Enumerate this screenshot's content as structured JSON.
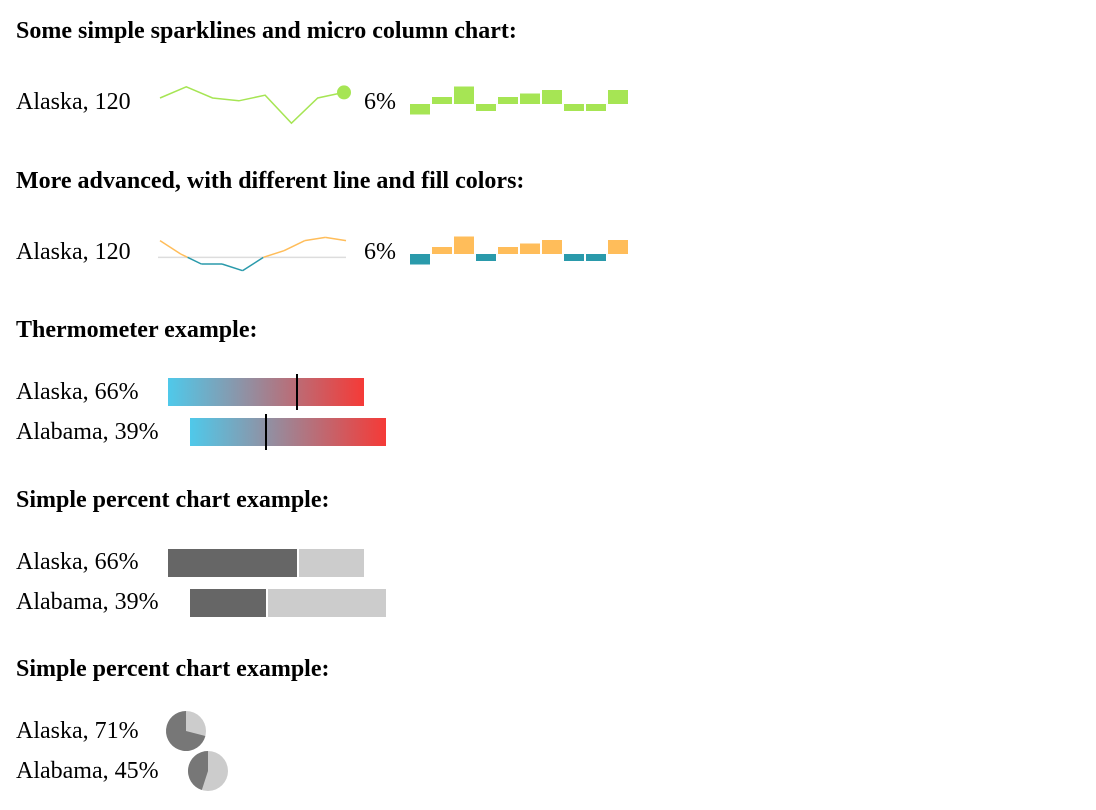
{
  "headings": {
    "h1": "Some simple sparklines and micro column chart:",
    "h2": "More advanced, with different line and fill colors:",
    "h3": "Thermometer example:",
    "h4": "Simple percent chart example:",
    "h5": "Simple percent chart example:"
  },
  "colors": {
    "green": "#a6e554",
    "orange": "#ffbd5a",
    "teal": "#2a9aab",
    "thermo_cold": "#4fc9ea",
    "thermo_hot": "#f53a37",
    "percent_dark": "#666666",
    "percent_light": "#cccccc",
    "pie_dark": "#777777",
    "pie_light": "#cccccc"
  },
  "chart_data": [
    {
      "type": "line",
      "name": "sparkline-simple",
      "label": "Alaska, 120",
      "values": [
        3,
        7,
        3,
        2,
        4,
        -6,
        3,
        5
      ],
      "color": "#a6e554",
      "highlight_last_point": true
    },
    {
      "type": "bar",
      "name": "micro-columns-simple",
      "label": "6%",
      "values": [
        -3,
        2,
        5,
        -2,
        2,
        3,
        4,
        -2,
        -2,
        4
      ],
      "color": "#a6e554"
    },
    {
      "type": "line",
      "name": "sparkline-advanced",
      "label": "Alaska, 120",
      "values": [
        5,
        1,
        -2,
        -2,
        -4,
        0,
        2,
        5,
        6,
        5
      ],
      "positive_color": "#ffbd5a",
      "negative_color": "#2a9aab",
      "baseline": true
    },
    {
      "type": "bar",
      "name": "micro-columns-advanced",
      "label": "6%",
      "values": [
        -3,
        2,
        5,
        -2,
        2,
        3,
        4,
        -2,
        -2,
        4
      ],
      "positive_color": "#ffbd5a",
      "negative_color": "#2a9aab"
    },
    {
      "type": "bar",
      "name": "thermometers",
      "rows": [
        {
          "label": "Alaska, 66%",
          "value": 66
        },
        {
          "label": "Alabama, 39%",
          "value": 39
        }
      ]
    },
    {
      "type": "bar",
      "name": "percent-bars",
      "rows": [
        {
          "label": "Alaska, 66%",
          "value": 66
        },
        {
          "label": "Alabama, 39%",
          "value": 39
        }
      ]
    },
    {
      "type": "pie",
      "name": "percent-pies",
      "rows": [
        {
          "label": "Alaska, 71%",
          "value": 71
        },
        {
          "label": "Alabama, 45%",
          "value": 45
        }
      ]
    }
  ]
}
